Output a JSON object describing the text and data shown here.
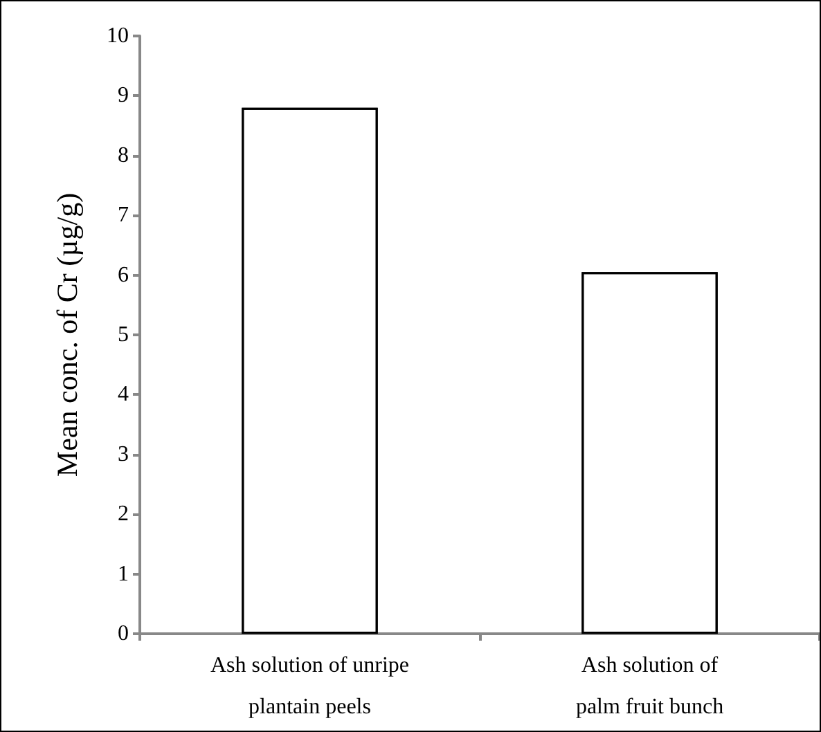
{
  "chart_data": {
    "type": "bar",
    "ylabel": "Mean conc. of Cr (µg/g)",
    "categories": [
      "Ash solution of unripe\nplantain peels",
      "Ash solution of\npalm fruit bunch"
    ],
    "values": [
      8.8,
      6.05
    ],
    "color": "#000000",
    "ylim": [
      0,
      10
    ],
    "yticks": [
      0,
      1,
      2,
      3,
      4,
      5,
      6,
      7,
      8,
      9,
      10
    ],
    "grid": false
  }
}
